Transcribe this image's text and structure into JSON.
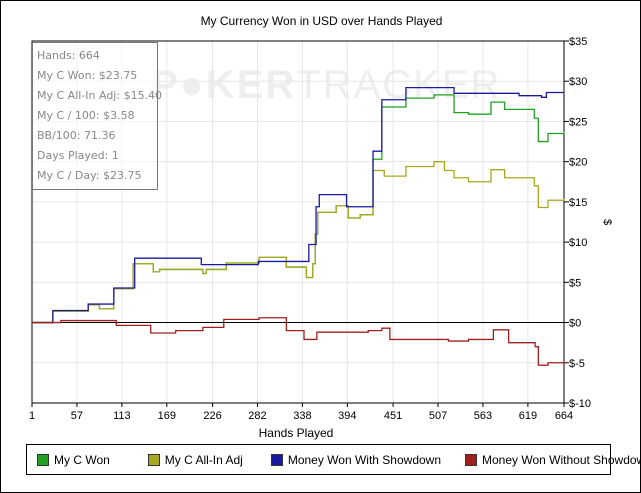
{
  "chart_data": {
    "type": "line",
    "title": "My Currency Won in USD over Hands Played",
    "xlabel": "Hands Played",
    "ylabel": "$",
    "xlim": [
      1,
      664
    ],
    "ylim": [
      -10,
      35
    ],
    "x_ticks": [
      "1",
      "57",
      "113",
      "169",
      "226",
      "282",
      "338",
      "394",
      "451",
      "507",
      "563",
      "619",
      "664"
    ],
    "y_ticks": [
      "$35",
      "$30",
      "$25",
      "$20",
      "$15",
      "$10",
      "$5",
      "$0",
      "$-5",
      "$-10"
    ],
    "grid": true,
    "legend_position": "bottom",
    "watermark": "POKERTRACKER",
    "series": [
      {
        "name": "My C Won",
        "color": "#22a022",
        "points": [
          [
            1,
            0
          ],
          [
            27,
            1.4
          ],
          [
            71,
            2.2
          ],
          [
            85,
            1.7
          ],
          [
            103,
            4.2
          ],
          [
            127,
            7.3
          ],
          [
            152,
            6.3
          ],
          [
            160,
            6.6
          ],
          [
            214,
            6.1
          ],
          [
            218,
            6.6
          ],
          [
            243,
            7.4
          ],
          [
            284,
            8.1
          ],
          [
            318,
            6.9
          ],
          [
            343,
            5.6
          ],
          [
            351,
            7.3
          ],
          [
            354,
            11
          ],
          [
            357,
            13.7
          ],
          [
            380,
            14.5
          ],
          [
            395,
            13
          ],
          [
            410,
            13.4
          ],
          [
            426,
            20.3
          ],
          [
            437,
            26.8
          ],
          [
            467,
            27.9
          ],
          [
            502,
            28.3
          ],
          [
            527,
            26.1
          ],
          [
            545,
            25.9
          ],
          [
            573,
            27.4
          ],
          [
            590,
            26.5
          ],
          [
            627,
            25.4
          ],
          [
            632,
            22.5
          ],
          [
            644,
            23.5
          ],
          [
            664,
            23.75
          ]
        ]
      },
      {
        "name": "My C All-In Adj",
        "color": "#a8a820",
        "points": [
          [
            1,
            0
          ],
          [
            27,
            1.4
          ],
          [
            71,
            2.2
          ],
          [
            85,
            1.7
          ],
          [
            103,
            4.2
          ],
          [
            127,
            7.3
          ],
          [
            152,
            6.3
          ],
          [
            160,
            6.6
          ],
          [
            214,
            6.1
          ],
          [
            218,
            6.6
          ],
          [
            243,
            7.4
          ],
          [
            284,
            8.1
          ],
          [
            318,
            6.9
          ],
          [
            343,
            5.6
          ],
          [
            351,
            7.3
          ],
          [
            354,
            11
          ],
          [
            357,
            13.7
          ],
          [
            380,
            14.5
          ],
          [
            395,
            13
          ],
          [
            410,
            13.4
          ],
          [
            426,
            18.9
          ],
          [
            440,
            18.2
          ],
          [
            467,
            19.4
          ],
          [
            502,
            20
          ],
          [
            515,
            18.9
          ],
          [
            527,
            18
          ],
          [
            545,
            17.5
          ],
          [
            573,
            19
          ],
          [
            590,
            18
          ],
          [
            627,
            17
          ],
          [
            632,
            14.3
          ],
          [
            644,
            15.2
          ],
          [
            664,
            15.4
          ]
        ]
      },
      {
        "name": "Money Won With Showdown",
        "color": "#1a1aa0",
        "points": [
          [
            1,
            0
          ],
          [
            27,
            1.5
          ],
          [
            71,
            2.3
          ],
          [
            103,
            4.3
          ],
          [
            129,
            8
          ],
          [
            212,
            7.2
          ],
          [
            283,
            7.6
          ],
          [
            346,
            9.7
          ],
          [
            355,
            14.4
          ],
          [
            359,
            15.9
          ],
          [
            393,
            14.4
          ],
          [
            426,
            21.3
          ],
          [
            437,
            27.7
          ],
          [
            467,
            29.2
          ],
          [
            527,
            28.5
          ],
          [
            608,
            28.2
          ],
          [
            636,
            28
          ],
          [
            642,
            28.6
          ],
          [
            664,
            28.6
          ]
        ]
      },
      {
        "name": "Money Won Without Showdown",
        "color": "#a02020",
        "points": [
          [
            1,
            0
          ],
          [
            37,
            0.25
          ],
          [
            106,
            -0.35
          ],
          [
            149,
            -1.3
          ],
          [
            180,
            -1
          ],
          [
            214,
            -0.6
          ],
          [
            240,
            0.4
          ],
          [
            284,
            0.6
          ],
          [
            318,
            -1
          ],
          [
            340,
            -2.1
          ],
          [
            356,
            -1.2
          ],
          [
            420,
            -1
          ],
          [
            437,
            -0.7
          ],
          [
            447,
            -2.1
          ],
          [
            520,
            -2.3
          ],
          [
            545,
            -2.1
          ],
          [
            576,
            -0.9
          ],
          [
            595,
            -2.5
          ],
          [
            628,
            -3
          ],
          [
            632,
            -5.3
          ],
          [
            644,
            -5
          ],
          [
            664,
            -4.75
          ]
        ]
      }
    ]
  },
  "stats": [
    "Hands: 664",
    "My C Won: $23.75",
    "My C All-In Adj: $15.40",
    "My C / 100: $3.58",
    "BB/100: 71.36",
    "Days Played: 1",
    "My C / Day: $23.75"
  ]
}
